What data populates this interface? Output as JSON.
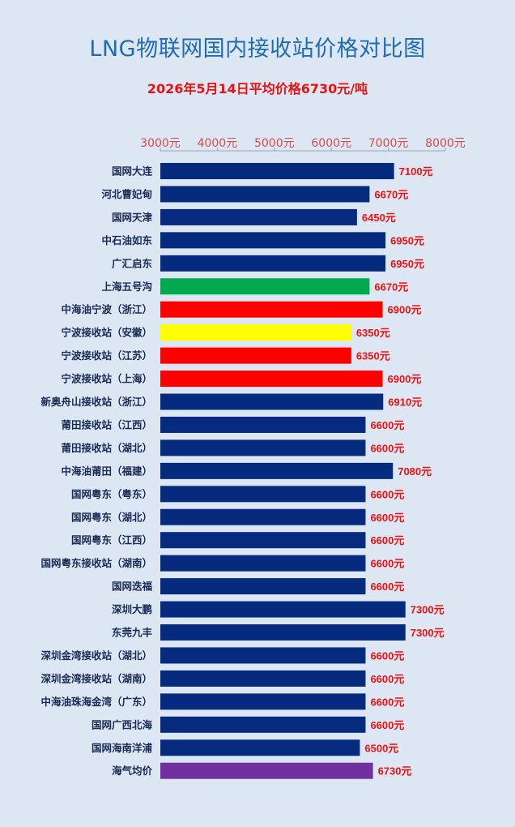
{
  "chart_data": {
    "type": "bar",
    "orientation": "horizontal",
    "title": "LNG物联网国内接收站价格对比图",
    "subtitle": "2026年5月14日平均价格6730元/吨",
    "xlim": [
      3000,
      8000
    ],
    "x_ticks": [
      3000,
      4000,
      5000,
      6000,
      7000,
      8000
    ],
    "x_tick_labels": [
      "3000元",
      "4000元",
      "5000元",
      "6000元",
      "7000元",
      "8000元"
    ],
    "axis_position": "top",
    "value_suffix": "元",
    "categories": [
      "国网大连",
      "河北曹妃甸",
      "国网天津",
      "中石油如东",
      "广汇启东",
      "上海五号沟",
      "中海油宁波（浙江）",
      "宁波接收站（安徽）",
      "宁波接收站（江苏）",
      "宁波接收站（上海）",
      "新奥舟山接收站（浙江）",
      "莆田接收站（江西）",
      "莆田接收站（湖北）",
      "中海油莆田（福建）",
      "国网粤东（粤东）",
      "国网粤东（湖北）",
      "国网粤东（江西）",
      "国网粤东接收站（湖南）",
      "国网迭福",
      "深圳大鹏",
      "东莞九丰",
      "深圳金湾接收站（湖北）",
      "深圳金湾接收站（湖南）",
      "中海油珠海金湾（广东）",
      "国网广西北海",
      "国网海南洋浦",
      "海气均价"
    ],
    "values": [
      7100,
      6670,
      6450,
      6950,
      6950,
      6670,
      6900,
      6350,
      6350,
      6900,
      6910,
      6600,
      6600,
      7080,
      6600,
      6600,
      6600,
      6600,
      6600,
      7300,
      7300,
      6600,
      6600,
      6600,
      6600,
      6500,
      6730
    ],
    "bar_colors": [
      "#062a7e",
      "#062a7e",
      "#062a7e",
      "#062a7e",
      "#062a7e",
      "#00a84f",
      "#ff0000",
      "#ffff00",
      "#ff0000",
      "#ff0000",
      "#062a7e",
      "#062a7e",
      "#062a7e",
      "#062a7e",
      "#062a7e",
      "#062a7e",
      "#062a7e",
      "#062a7e",
      "#062a7e",
      "#062a7e",
      "#062a7e",
      "#062a7e",
      "#062a7e",
      "#062a7e",
      "#062a7e",
      "#062a7e",
      "#7030a0"
    ],
    "grid": false
  }
}
